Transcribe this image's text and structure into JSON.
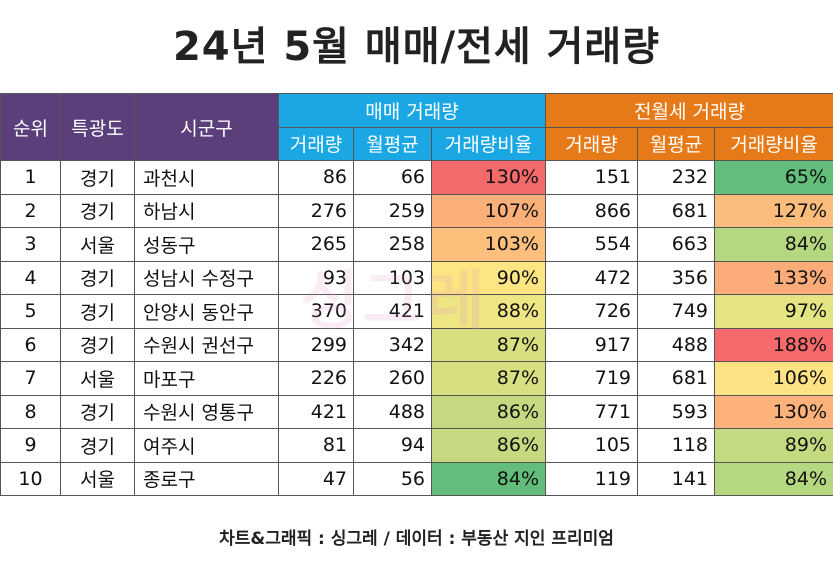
{
  "title": "24년 5월 매매/전세 거래량",
  "headers": {
    "rank": "순위",
    "region": "특광도",
    "district": "시군구",
    "sale_group": "매매 거래량",
    "rent_group": "전월세 거래량",
    "sale_sub": [
      "거래량",
      "월평균",
      "거래량비율"
    ],
    "rent_sub": [
      "거래량",
      "월평균",
      "거래량비율"
    ]
  },
  "rows": [
    {
      "rank": "1",
      "region": "경기",
      "district": "과천시",
      "sale_vol": "86",
      "sale_avg": "66",
      "sale_ratio": "130%",
      "rent_vol": "151",
      "rent_avg": "232",
      "rent_ratio": "65%",
      "sale_color": "#f46a6a",
      "rent_color": "#63be7b"
    },
    {
      "rank": "2",
      "region": "경기",
      "district": "하남시",
      "sale_vol": "276",
      "sale_avg": "259",
      "sale_ratio": "107%",
      "rent_vol": "866",
      "rent_avg": "681",
      "rent_ratio": "127%",
      "sale_color": "#fcb079",
      "rent_color": "#fcbc7b"
    },
    {
      "rank": "3",
      "region": "서울",
      "district": "성동구",
      "sale_vol": "265",
      "sale_avg": "258",
      "sale_ratio": "103%",
      "rent_vol": "554",
      "rent_avg": "663",
      "rent_ratio": "84%",
      "sale_color": "#fcc07c",
      "rent_color": "#b5d77f"
    },
    {
      "rank": "4",
      "region": "경기",
      "district": "성남시 수정구",
      "sale_vol": "93",
      "sale_avg": "103",
      "sale_ratio": "90%",
      "rent_vol": "472",
      "rent_avg": "356",
      "rent_ratio": "133%",
      "sale_color": "#fde582",
      "rent_color": "#fbac78"
    },
    {
      "rank": "5",
      "region": "경기",
      "district": "안양시 동안구",
      "sale_vol": "370",
      "sale_avg": "421",
      "sale_ratio": "88%",
      "rent_vol": "726",
      "rent_avg": "749",
      "rent_ratio": "97%",
      "sale_color": "#eee583",
      "rent_color": "#e4e482"
    },
    {
      "rank": "6",
      "region": "경기",
      "district": "수원시 권선구",
      "sale_vol": "299",
      "sale_avg": "342",
      "sale_ratio": "87%",
      "rent_vol": "917",
      "rent_avg": "488",
      "rent_ratio": "188%",
      "sale_color": "#d8df81",
      "rent_color": "#f8696b"
    },
    {
      "rank": "7",
      "region": "서울",
      "district": "마포구",
      "sale_vol": "226",
      "sale_avg": "260",
      "sale_ratio": "87%",
      "rent_vol": "719",
      "rent_avg": "681",
      "rent_ratio": "106%",
      "sale_color": "#d8df81",
      "rent_color": "#fee283"
    },
    {
      "rank": "8",
      "region": "경기",
      "district": "수원시 영통구",
      "sale_vol": "421",
      "sale_avg": "488",
      "sale_ratio": "86%",
      "rent_vol": "771",
      "rent_avg": "593",
      "rent_ratio": "130%",
      "sale_color": "#c5da80",
      "rent_color": "#fcb27a"
    },
    {
      "rank": "9",
      "region": "경기",
      "district": "여주시",
      "sale_vol": "81",
      "sale_avg": "94",
      "sale_ratio": "86%",
      "rent_vol": "105",
      "rent_avg": "118",
      "rent_ratio": "89%",
      "sale_color": "#c5da80",
      "rent_color": "#c3da80"
    },
    {
      "rank": "10",
      "region": "서울",
      "district": "종로구",
      "sale_vol": "47",
      "sale_avg": "56",
      "sale_ratio": "84%",
      "rent_vol": "119",
      "rent_avg": "141",
      "rent_ratio": "84%",
      "sale_color": "#63be7b",
      "rent_color": "#b5d77f"
    }
  ],
  "footer": "차트&그래픽 : 싱그레 / 데이터 : 부동산 지인 프리미엄",
  "watermark": "싱그레",
  "colors": {
    "header_purple": "#5b3f7a",
    "header_blue": "#1aa7e3",
    "header_orange": "#e67a18"
  }
}
